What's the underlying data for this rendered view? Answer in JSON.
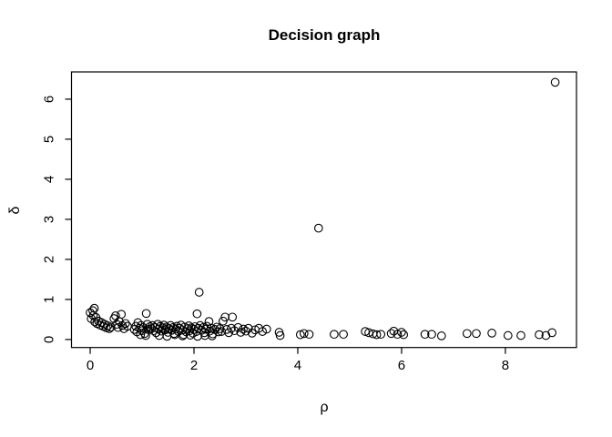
{
  "chart_data": {
    "type": "scatter",
    "title": "Decision graph",
    "xlabel": "ρ",
    "ylabel": "δ",
    "x_ticks": [
      0,
      2,
      4,
      6,
      8
    ],
    "y_ticks": [
      0,
      1,
      2,
      3,
      4,
      5,
      6
    ],
    "xlim": [
      -0.36,
      9.37
    ],
    "ylim": [
      -0.2,
      6.68
    ],
    "grid": false,
    "legend": null,
    "marker": "open-circle",
    "marker_color": "#000000",
    "background_color": "#ffffff",
    "notable_points": [
      {
        "rho": 8.96,
        "delta": 6.42
      },
      {
        "rho": 4.4,
        "delta": 2.78
      },
      {
        "rho": 2.1,
        "delta": 1.18
      }
    ],
    "points": [
      [
        0.0,
        0.67
      ],
      [
        0.02,
        0.52
      ],
      [
        0.05,
        0.72
      ],
      [
        0.08,
        0.78
      ],
      [
        0.06,
        0.6
      ],
      [
        0.09,
        0.44
      ],
      [
        0.11,
        0.55
      ],
      [
        0.13,
        0.4
      ],
      [
        0.16,
        0.46
      ],
      [
        0.19,
        0.36
      ],
      [
        0.22,
        0.42
      ],
      [
        0.25,
        0.33
      ],
      [
        0.28,
        0.38
      ],
      [
        0.31,
        0.29
      ],
      [
        0.34,
        0.34
      ],
      [
        0.37,
        0.27
      ],
      [
        0.4,
        0.31
      ],
      [
        0.46,
        0.52
      ],
      [
        0.49,
        0.59
      ],
      [
        0.51,
        0.38
      ],
      [
        0.54,
        0.3
      ],
      [
        0.56,
        0.45
      ],
      [
        0.6,
        0.63
      ],
      [
        0.62,
        0.35
      ],
      [
        0.65,
        0.27
      ],
      [
        0.68,
        0.4
      ],
      [
        0.72,
        0.33
      ],
      [
        0.85,
        0.25
      ],
      [
        0.88,
        0.33
      ],
      [
        0.9,
        0.19
      ],
      [
        0.92,
        0.42
      ],
      [
        0.95,
        0.28
      ],
      [
        0.97,
        0.12
      ],
      [
        0.98,
        0.35
      ],
      [
        1.0,
        0.22
      ],
      [
        1.02,
        0.3
      ],
      [
        1.05,
        0.15
      ],
      [
        1.07,
        0.1
      ],
      [
        1.08,
        0.65
      ],
      [
        1.1,
        0.38
      ],
      [
        1.12,
        0.25
      ],
      [
        1.15,
        0.32
      ],
      [
        1.18,
        0.27
      ],
      [
        1.2,
        0.35
      ],
      [
        1.22,
        0.22
      ],
      [
        1.25,
        0.3
      ],
      [
        1.27,
        0.17
      ],
      [
        1.3,
        0.38
      ],
      [
        1.32,
        0.26
      ],
      [
        1.33,
        0.1
      ],
      [
        1.35,
        0.33
      ],
      [
        1.37,
        0.21
      ],
      [
        1.4,
        0.29
      ],
      [
        1.42,
        0.36
      ],
      [
        1.45,
        0.24
      ],
      [
        1.47,
        0.31
      ],
      [
        1.48,
        0.08
      ],
      [
        1.5,
        0.18
      ],
      [
        1.52,
        0.27
      ],
      [
        1.55,
        0.35
      ],
      [
        1.57,
        0.23
      ],
      [
        1.6,
        0.3
      ],
      [
        1.62,
        0.15
      ],
      [
        1.63,
        0.12
      ],
      [
        1.65,
        0.26
      ],
      [
        1.67,
        0.33
      ],
      [
        1.7,
        0.2
      ],
      [
        1.72,
        0.28
      ],
      [
        1.75,
        0.36
      ],
      [
        1.78,
        0.24
      ],
      [
        1.78,
        0.09
      ],
      [
        1.8,
        0.12
      ],
      [
        1.82,
        0.31
      ],
      [
        1.85,
        0.19
      ],
      [
        1.88,
        0.27
      ],
      [
        1.9,
        0.34
      ],
      [
        1.92,
        0.22
      ],
      [
        1.93,
        0.11
      ],
      [
        1.95,
        0.29
      ],
      [
        1.98,
        0.16
      ],
      [
        2.0,
        0.25
      ],
      [
        2.02,
        0.32
      ],
      [
        2.05,
        0.2
      ],
      [
        2.06,
        0.64
      ],
      [
        2.07,
        0.08
      ],
      [
        2.08,
        0.28
      ],
      [
        2.1,
        1.18
      ],
      [
        2.12,
        0.35
      ],
      [
        2.15,
        0.23
      ],
      [
        2.18,
        0.3
      ],
      [
        2.2,
        0.17
      ],
      [
        2.21,
        0.1
      ],
      [
        2.22,
        0.26
      ],
      [
        2.25,
        0.33
      ],
      [
        2.29,
        0.45
      ],
      [
        2.3,
        0.21
      ],
      [
        2.33,
        0.28
      ],
      [
        2.35,
        0.09
      ],
      [
        2.36,
        0.14
      ],
      [
        2.4,
        0.25
      ],
      [
        2.44,
        0.31
      ],
      [
        2.47,
        0.19
      ],
      [
        2.5,
        0.27
      ],
      [
        2.53,
        0.2
      ],
      [
        2.56,
        0.46
      ],
      [
        2.6,
        0.56
      ],
      [
        2.74,
        0.56
      ],
      [
        2.63,
        0.25
      ],
      [
        2.67,
        0.17
      ],
      [
        2.72,
        0.28
      ],
      [
        2.78,
        0.22
      ],
      [
        2.85,
        0.3
      ],
      [
        2.9,
        0.18
      ],
      [
        2.95,
        0.26
      ],
      [
        3.0,
        0.21
      ],
      [
        3.05,
        0.28
      ],
      [
        3.12,
        0.16
      ],
      [
        3.18,
        0.24
      ],
      [
        3.25,
        0.28
      ],
      [
        3.32,
        0.2
      ],
      [
        3.4,
        0.26
      ],
      [
        3.64,
        0.18
      ],
      [
        3.66,
        0.1
      ],
      [
        4.05,
        0.12
      ],
      [
        4.12,
        0.15
      ],
      [
        4.22,
        0.13
      ],
      [
        4.4,
        2.78
      ],
      [
        4.7,
        0.13
      ],
      [
        4.88,
        0.13
      ],
      [
        5.3,
        0.2
      ],
      [
        5.37,
        0.17
      ],
      [
        5.45,
        0.14
      ],
      [
        5.52,
        0.12
      ],
      [
        5.6,
        0.13
      ],
      [
        5.8,
        0.15
      ],
      [
        5.85,
        0.21
      ],
      [
        5.92,
        0.13
      ],
      [
        6.0,
        0.18
      ],
      [
        6.04,
        0.12
      ],
      [
        6.45,
        0.13
      ],
      [
        6.58,
        0.13
      ],
      [
        6.77,
        0.09
      ],
      [
        7.26,
        0.15
      ],
      [
        7.44,
        0.15
      ],
      [
        7.74,
        0.16
      ],
      [
        8.05,
        0.1
      ],
      [
        8.3,
        0.1
      ],
      [
        8.65,
        0.12
      ],
      [
        8.78,
        0.1
      ],
      [
        8.9,
        0.17
      ],
      [
        8.96,
        6.42
      ]
    ]
  }
}
